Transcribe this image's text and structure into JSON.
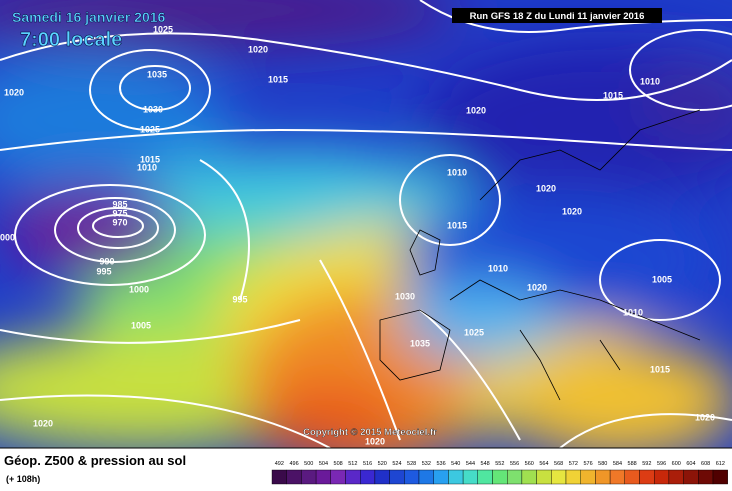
{
  "header": {
    "date": "Samedi 16 janvier 2016",
    "time": "7:00 locale",
    "run": "Run GFS 18 Z du Lundi 11 janvier 2016"
  },
  "copyright": "Copyright © 2015 Meteociel.fr",
  "footer": {
    "title": "Géop. Z500 & pression au sol",
    "lead": "(+ 108h)"
  },
  "scale": [
    492,
    496,
    500,
    504,
    508,
    512,
    516,
    520,
    524,
    528,
    532,
    536,
    540,
    544,
    548,
    552,
    556,
    560,
    564,
    568,
    572,
    576,
    580,
    584,
    588,
    592,
    596,
    600,
    604,
    608,
    612
  ],
  "isobars": [
    "1025",
    "1020",
    "1020",
    "1035",
    "1015",
    "1030",
    "1025",
    "1015",
    "1010",
    "985",
    "975",
    "970",
    "990",
    "995",
    "1000",
    "1005",
    "995",
    "1000",
    "1010",
    "1015",
    "1020",
    "1020",
    "1020",
    "1015",
    "1010",
    "1010",
    "1020",
    "1030",
    "1005",
    "1010",
    "1025",
    "1035",
    "1015",
    "1020",
    "1020",
    "1020"
  ]
}
